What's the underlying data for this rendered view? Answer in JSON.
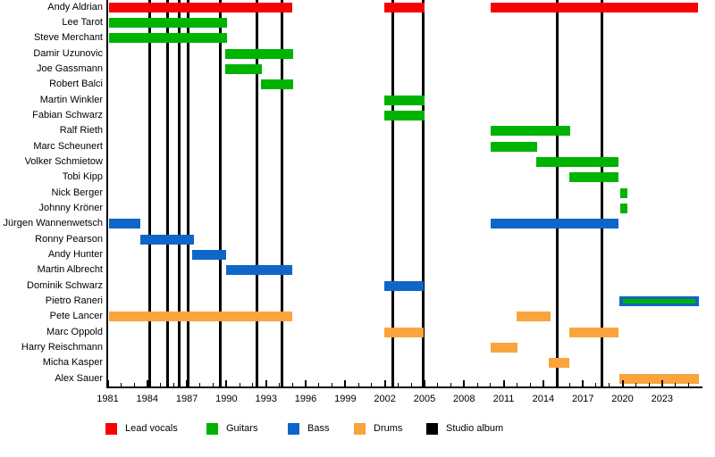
{
  "chart_data": {
    "type": "bar",
    "subtype": "gantt-member-timeline",
    "title": "",
    "x_axis": {
      "min": 1981,
      "max": 2026,
      "major_tick_years": [
        1981,
        1984,
        1987,
        1990,
        1993,
        1996,
        1999,
        2002,
        2005,
        2008,
        2011,
        2014,
        2017,
        2020,
        2023
      ],
      "minor_tick_interval": 1,
      "minor_tick_last_year": 2025
    },
    "legend": [
      {
        "key": "vocals",
        "label": "Lead vocals",
        "color": "#fa0000"
      },
      {
        "key": "guitars",
        "label": "Guitars",
        "color": "#00b300"
      },
      {
        "key": "bass",
        "label": "Bass",
        "color": "#0f66c8"
      },
      {
        "key": "drums",
        "label": "Drums",
        "color": "#fba33c"
      },
      {
        "key": "album",
        "label": "Studio album",
        "color": "#000000"
      }
    ],
    "album_release_years": [
      1984.2,
      1985.55,
      1986.4,
      1987.1,
      1989.5,
      1992.3,
      1994.2,
      2002.6,
      2004.9,
      2015.05,
      2018.45
    ],
    "members": [
      {
        "name": "Andy Aldrian",
        "role": "vocals",
        "segments": [
          [
            1981.1,
            1995.0
          ],
          [
            2001.95,
            2005.0
          ],
          [
            2010.0,
            2025.7
          ]
        ]
      },
      {
        "name": "Lee Tarot",
        "role": "guitars",
        "segments": [
          [
            1981.1,
            1990.05
          ]
        ]
      },
      {
        "name": "Steve Merchant",
        "role": "guitars",
        "segments": [
          [
            1981.1,
            1990.05
          ]
        ]
      },
      {
        "name": "Damir Uzunovic",
        "role": "guitars",
        "segments": [
          [
            1989.9,
            1995.05
          ]
        ]
      },
      {
        "name": "Joe Gassmann",
        "role": "guitars",
        "segments": [
          [
            1989.9,
            1992.7
          ]
        ]
      },
      {
        "name": "Robert Balci",
        "role": "guitars",
        "segments": [
          [
            1992.6,
            1995.05
          ]
        ]
      },
      {
        "name": "Martin Winkler",
        "role": "guitars",
        "segments": [
          [
            2001.95,
            2005.0
          ]
        ]
      },
      {
        "name": "Fabian Schwarz",
        "role": "guitars",
        "segments": [
          [
            2001.95,
            2005.0
          ]
        ]
      },
      {
        "name": "Ralf Rieth",
        "role": "guitars",
        "segments": [
          [
            2010.0,
            2016.05
          ]
        ]
      },
      {
        "name": "Marc Scheunert",
        "role": "guitars",
        "segments": [
          [
            2010.0,
            2013.55
          ]
        ]
      },
      {
        "name": "Volker Schmietow",
        "role": "guitars",
        "segments": [
          [
            2013.45,
            2019.7
          ]
        ]
      },
      {
        "name": "Tobi Kipp",
        "role": "guitars",
        "segments": [
          [
            2016.0,
            2019.7
          ]
        ]
      },
      {
        "name": "Nick Berger",
        "role": "guitars",
        "segments": [
          [
            2019.85,
            2020.4
          ]
        ]
      },
      {
        "name": "Johnny Kröner",
        "role": "guitars",
        "segments": [
          [
            2019.85,
            2020.4
          ]
        ]
      },
      {
        "name": "Jürgen Wannenwetsch",
        "role": "bass",
        "segments": [
          [
            1981.1,
            1983.45
          ],
          [
            2010.0,
            2019.7
          ]
        ]
      },
      {
        "name": "Ronny Pearson",
        "role": "bass",
        "segments": [
          [
            1983.45,
            1987.55
          ]
        ]
      },
      {
        "name": "Andy Hunter",
        "role": "bass",
        "segments": [
          [
            1987.4,
            1990.0
          ]
        ]
      },
      {
        "name": "Martin Albrecht",
        "role": "bass",
        "segments": [
          [
            1990.0,
            1995.0
          ]
        ]
      },
      {
        "name": "Dominik Schwarz",
        "role": "bass",
        "segments": [
          [
            2001.95,
            2004.95
          ]
        ]
      },
      {
        "name": "Pietro Raneri",
        "role": "bass",
        "overlay_role": "guitars",
        "segments": [
          [
            2019.75,
            2025.8
          ]
        ]
      },
      {
        "name": "Pete Lancer",
        "role": "drums",
        "segments": [
          [
            1981.1,
            1995.0
          ],
          [
            2012.0,
            2014.55
          ]
        ]
      },
      {
        "name": "Marc Oppold",
        "role": "drums",
        "segments": [
          [
            2001.95,
            2004.95
          ],
          [
            2016.0,
            2019.7
          ]
        ]
      },
      {
        "name": "Harry Reischmann",
        "role": "drums",
        "segments": [
          [
            2010.0,
            2012.05
          ]
        ]
      },
      {
        "name": "Micha Kasper",
        "role": "drums",
        "segments": [
          [
            2014.4,
            2016.0
          ]
        ]
      },
      {
        "name": "Alex Sauer",
        "role": "drums",
        "segments": [
          [
            2019.75,
            2025.8
          ]
        ]
      }
    ]
  }
}
